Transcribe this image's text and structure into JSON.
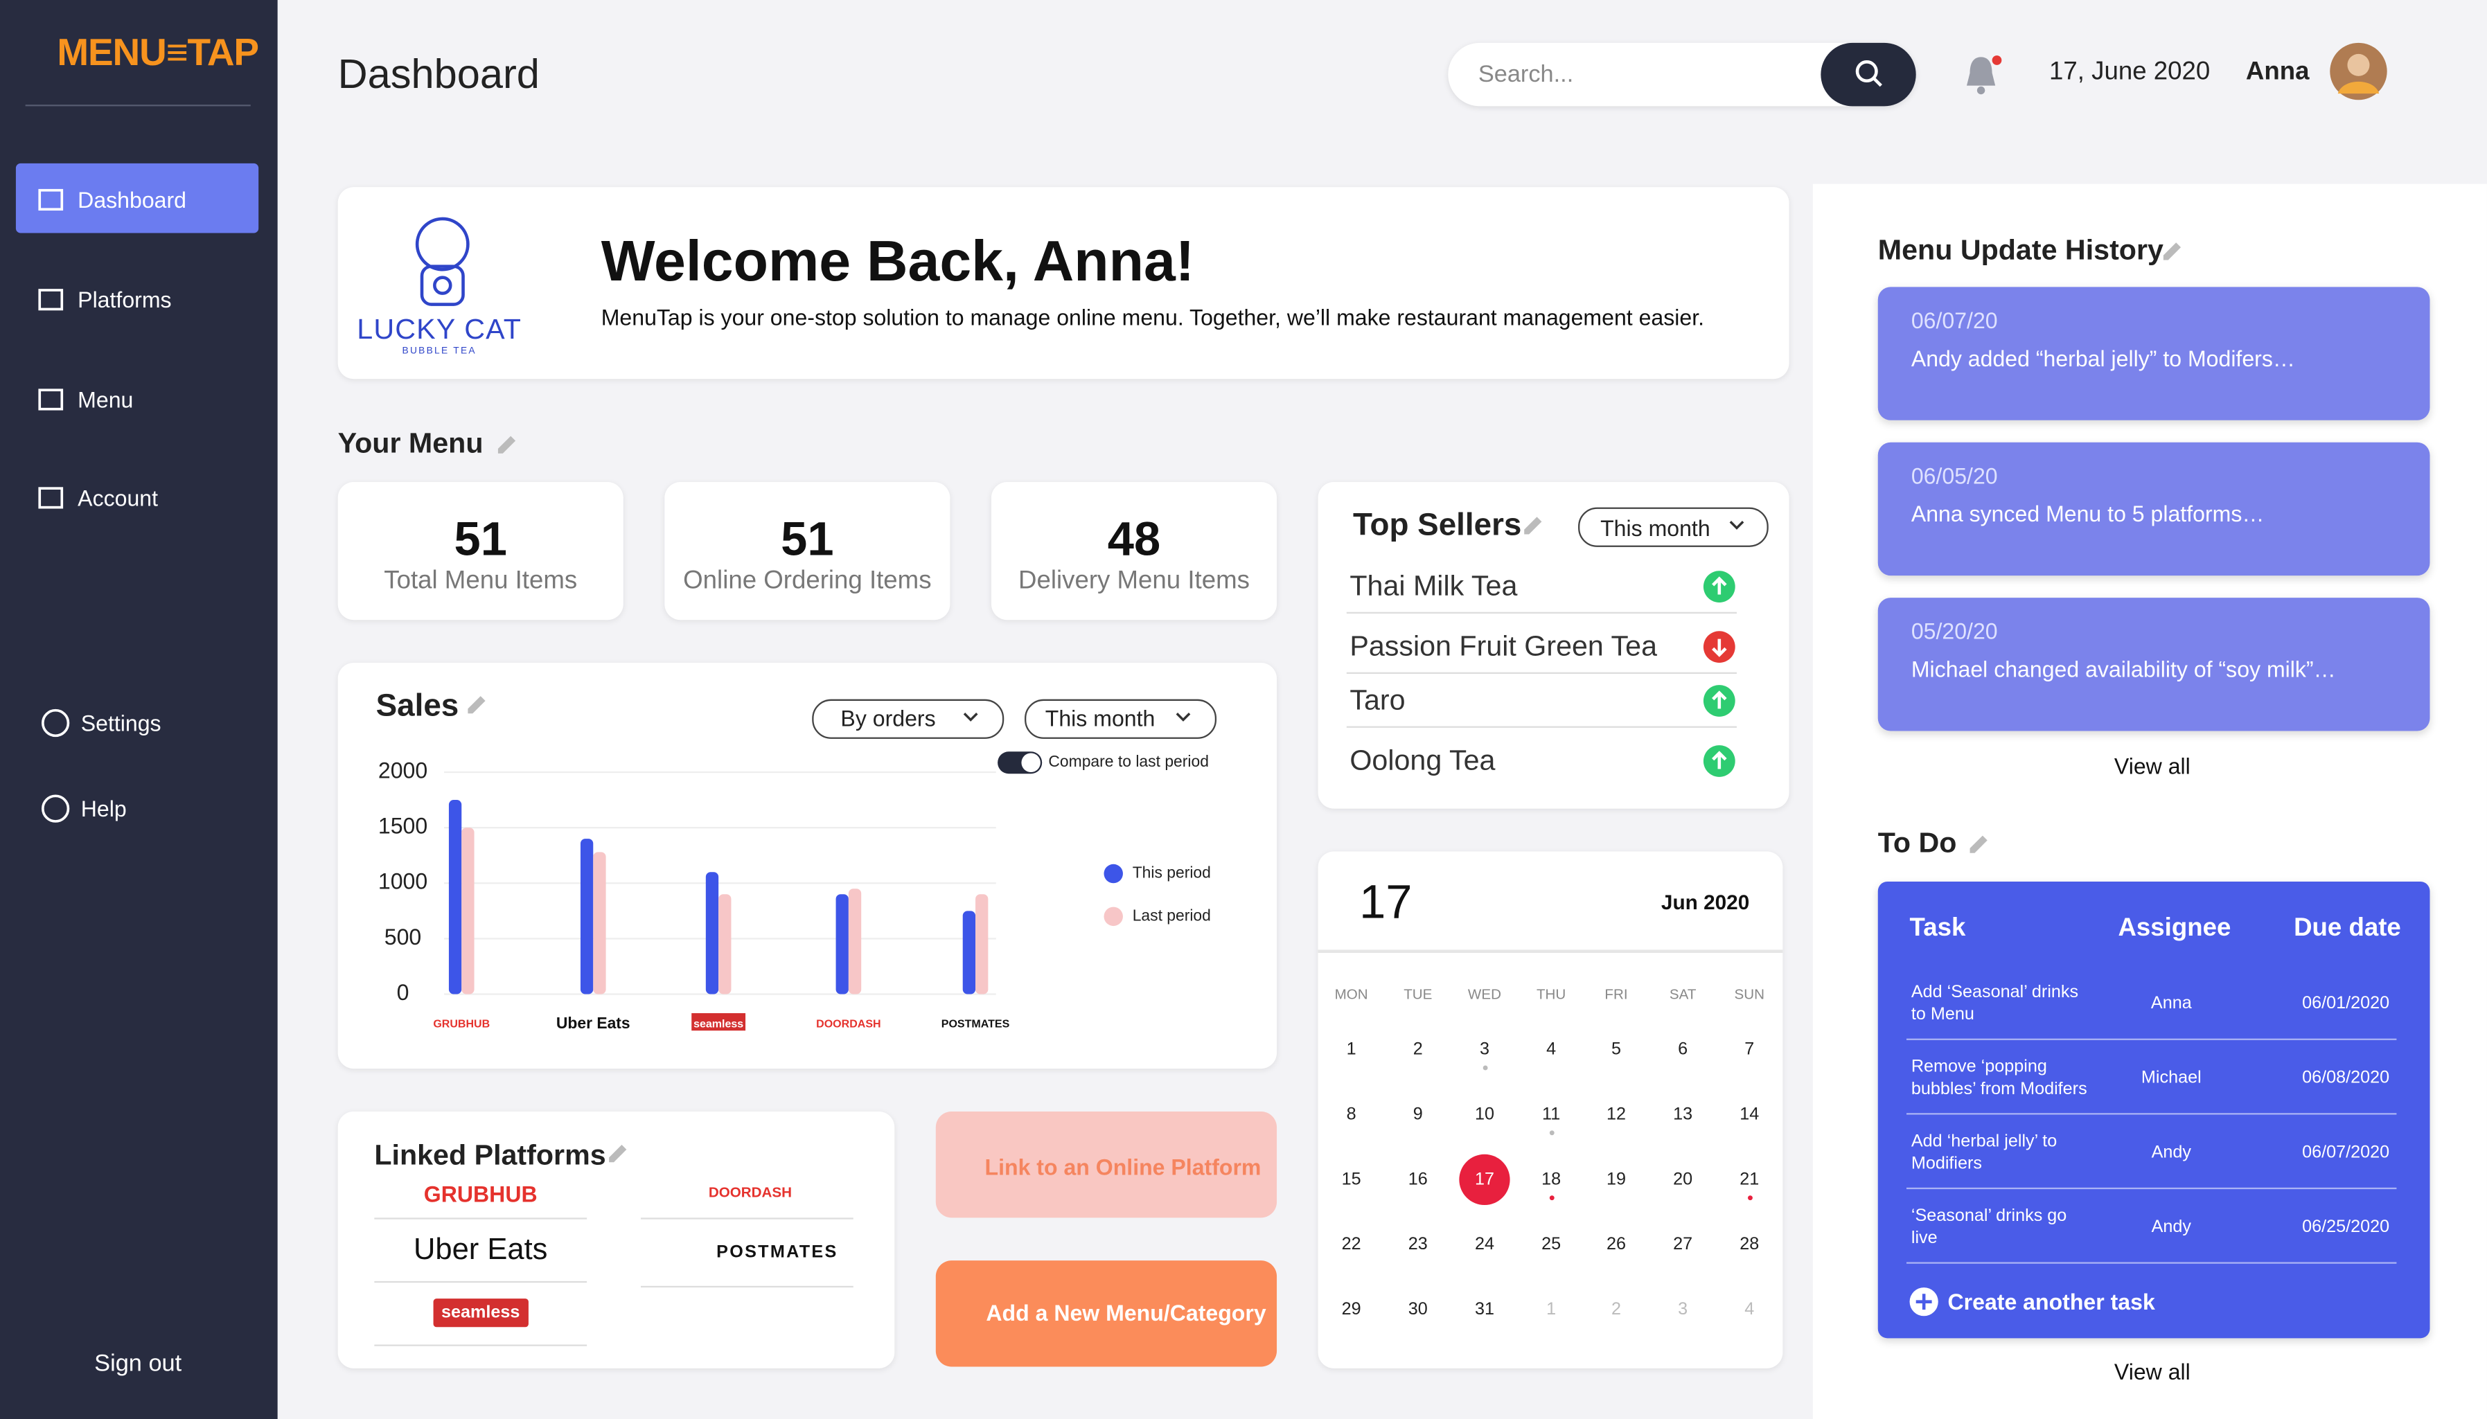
{
  "sidebar": {
    "brand": "MENU≡TAP",
    "nav": [
      "Dashboard",
      "Platforms",
      "Menu",
      "Account"
    ],
    "secondary": [
      "Settings",
      "Help"
    ],
    "sign_out": "Sign out"
  },
  "header": {
    "title": "Dashboard",
    "search_placeholder": "Search...",
    "date": "17, June 2020",
    "user": "Anna"
  },
  "welcome": {
    "logo_title": "LUCKY CAT",
    "logo_subtitle": "BUBBLE TEA",
    "title": "Welcome Back, Anna!",
    "text": "MenuTap is your one-stop solution to manage online menu. Together, we’ll make restaurant management easier."
  },
  "your_menu": {
    "title": "Your Menu",
    "stats": [
      {
        "value": 51,
        "label": "Total Menu Items"
      },
      {
        "value": 51,
        "label": "Online Ordering Items"
      },
      {
        "value": 48,
        "label": "Delivery Menu Items"
      }
    ]
  },
  "top_sellers": {
    "title": "Top Sellers",
    "period": "This month",
    "items": [
      {
        "name": "Thai Milk Tea",
        "trend": "up"
      },
      {
        "name": "Passion Fruit Green Tea",
        "trend": "down"
      },
      {
        "name": "Taro",
        "trend": "up"
      },
      {
        "name": "Oolong Tea",
        "trend": "up"
      }
    ]
  },
  "chart_data": {
    "type": "bar",
    "title": "Sales",
    "filters": [
      "By orders",
      "This month"
    ],
    "compare_label": "Compare to last period",
    "categories": [
      "GRUBHUB",
      "Uber Eats",
      "seamless",
      "DOORDASH",
      "POSTMATES"
    ],
    "series": [
      {
        "name": "This period",
        "color": "#3d55e8",
        "values": [
          1750,
          1400,
          1100,
          900,
          750
        ]
      },
      {
        "name": "Last period",
        "color": "#f7c6c7",
        "values": [
          1500,
          1280,
          900,
          950,
          900
        ]
      }
    ],
    "ylim": [
      0,
      2000
    ],
    "yticks": [
      0,
      500,
      1000,
      1500,
      2000
    ],
    "grid": true
  },
  "linked_platforms": {
    "title": "Linked Platforms",
    "platforms": [
      "GRUBHUB",
      "Uber Eats",
      "seamless",
      "DOORDASH",
      "POSTMATES"
    ]
  },
  "actions": [
    "Link to an Online Platform",
    "Add a New Menu/Category"
  ],
  "calendar": {
    "day": 17,
    "month": "Jun 2020",
    "weekdays": [
      "MON",
      "TUE",
      "WED",
      "THU",
      "FRI",
      "SAT",
      "SUN"
    ],
    "weeks": [
      [
        1,
        2,
        3,
        4,
        5,
        6,
        7
      ],
      [
        8,
        9,
        10,
        11,
        12,
        13,
        14
      ],
      [
        15,
        16,
        17,
        18,
        19,
        20,
        21
      ],
      [
        22,
        23,
        24,
        25,
        26,
        27,
        28
      ],
      [
        29,
        30,
        31,
        1,
        2,
        3,
        4
      ]
    ]
  },
  "history": {
    "title": "Menu Update History",
    "entries": [
      {
        "date": "06/07/20",
        "text": "Andy added “herbal jelly” to Modifers…"
      },
      {
        "date": "06/05/20",
        "text": "Anna synced Menu to 5 platforms…"
      },
      {
        "date": "05/20/20",
        "text": "Michael changed availability of “soy milk”…"
      }
    ],
    "view_all": "View all"
  },
  "todo": {
    "title": "To Do",
    "columns": [
      "Task",
      "Assignee",
      "Due date"
    ],
    "rows": [
      [
        "Add ‘Seasonal’ drinks to Menu",
        "Anna",
        "06/01/2020"
      ],
      [
        "Remove ‘popping bubbles’ from Modifers",
        "Michael",
        "06/08/2020"
      ],
      [
        "Add ‘herbal jelly’ to Modifiers",
        "Andy",
        "06/07/2020"
      ],
      [
        "‘Seasonal’ drinks go live",
        "Andy",
        "06/25/2020"
      ]
    ],
    "create": "Create another task",
    "view_all": "View all"
  }
}
